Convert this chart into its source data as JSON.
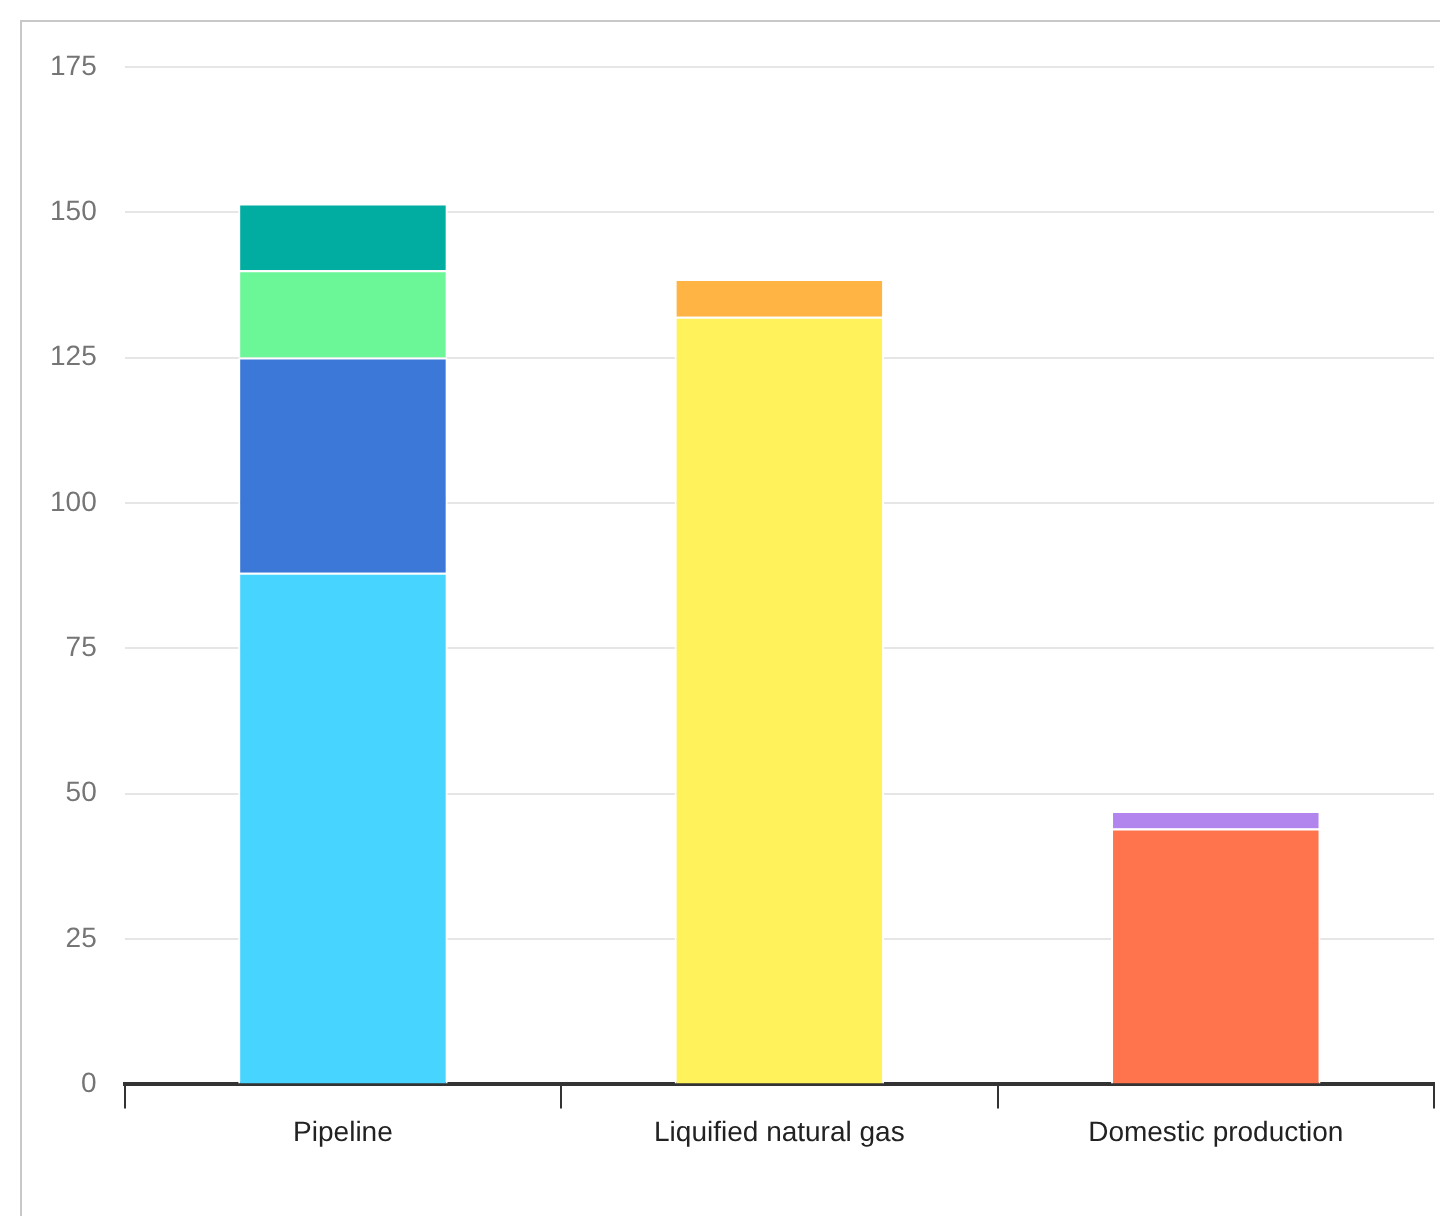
{
  "chart_data": {
    "type": "bar",
    "stacked": true,
    "categories": [
      "Pipeline",
      "Liquified natural gas",
      "Domestic production"
    ],
    "series": [
      {
        "color": "#47d4ff",
        "values": [
          88,
          null,
          null
        ]
      },
      {
        "color": "#3c78d8",
        "values": [
          37,
          null,
          null
        ]
      },
      {
        "color": "#6bf797",
        "values": [
          15,
          null,
          null
        ]
      },
      {
        "color": "#00ada0",
        "values": [
          11.5,
          null,
          null
        ]
      },
      {
        "color": "#fff25a",
        "values": [
          null,
          132,
          null
        ]
      },
      {
        "color": "#ffb444",
        "values": [
          null,
          6.5,
          null
        ]
      },
      {
        "color": "#ff744c",
        "values": [
          null,
          null,
          44
        ]
      },
      {
        "color": "#b284ee",
        "values": [
          null,
          null,
          3
        ]
      }
    ],
    "ylim": [
      0,
      175
    ],
    "yticks": [
      0,
      25,
      50,
      75,
      100,
      125,
      150,
      175
    ],
    "grid": "y",
    "legend": false
  }
}
